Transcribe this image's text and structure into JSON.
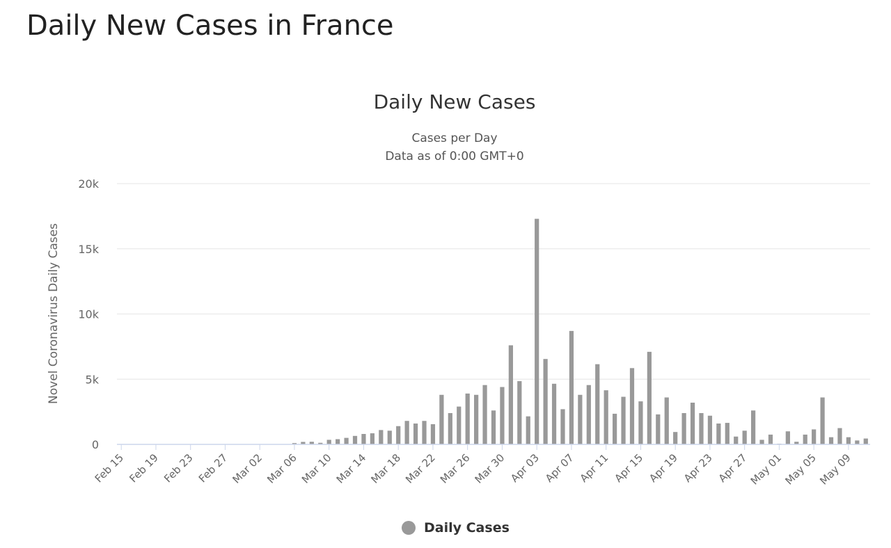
{
  "page": {
    "title": "Daily New Cases in France"
  },
  "chart_data": {
    "type": "bar",
    "title": "Daily New Cases",
    "subtitle_lines": [
      "Cases per Day",
      "Data as of 0:00 GMT+0"
    ],
    "ylabel": "Novel Coronavirus Daily Cases",
    "xlabel": "",
    "ylim": [
      0,
      20000
    ],
    "yticks": [
      0,
      5000,
      10000,
      15000,
      20000
    ],
    "ytick_labels": [
      "0",
      "5k",
      "10k",
      "15k",
      "20k"
    ],
    "grid": true,
    "legend_position": "bottom-center",
    "bar_color": "#999999",
    "categories": [
      "Feb 15",
      "Feb 16",
      "Feb 17",
      "Feb 18",
      "Feb 19",
      "Feb 20",
      "Feb 21",
      "Feb 22",
      "Feb 23",
      "Feb 24",
      "Feb 25",
      "Feb 26",
      "Feb 27",
      "Feb 28",
      "Feb 29",
      "Mar 01",
      "Mar 02",
      "Mar 03",
      "Mar 04",
      "Mar 05",
      "Mar 06",
      "Mar 07",
      "Mar 08",
      "Mar 09",
      "Mar 10",
      "Mar 11",
      "Mar 12",
      "Mar 13",
      "Mar 14",
      "Mar 15",
      "Mar 16",
      "Mar 17",
      "Mar 18",
      "Mar 19",
      "Mar 20",
      "Mar 21",
      "Mar 22",
      "Mar 23",
      "Mar 24",
      "Mar 25",
      "Mar 26",
      "Mar 27",
      "Mar 28",
      "Mar 29",
      "Mar 30",
      "Mar 31",
      "Apr 01",
      "Apr 02",
      "Apr 03",
      "Apr 04",
      "Apr 05",
      "Apr 06",
      "Apr 07",
      "Apr 08",
      "Apr 09",
      "Apr 10",
      "Apr 11",
      "Apr 12",
      "Apr 13",
      "Apr 14",
      "Apr 15",
      "Apr 16",
      "Apr 17",
      "Apr 18",
      "Apr 19",
      "Apr 20",
      "Apr 21",
      "Apr 22",
      "Apr 23",
      "Apr 24",
      "Apr 25",
      "Apr 26",
      "Apr 27",
      "Apr 28",
      "Apr 29",
      "Apr 30",
      "May 01",
      "May 02",
      "May 03",
      "May 04",
      "May 05",
      "May 06",
      "May 07",
      "May 08",
      "May 09",
      "May 10",
      "May 11"
    ],
    "xtick_labels": [
      "Feb 15",
      "Feb 19",
      "Feb 23",
      "Feb 27",
      "Mar 02",
      "Mar 06",
      "Mar 10",
      "Mar 14",
      "Mar 18",
      "Mar 22",
      "Mar 26",
      "Mar 30",
      "Apr 03",
      "Apr 07",
      "Apr 11",
      "Apr 15",
      "Apr 19",
      "Apr 23",
      "Apr 27",
      "May 01",
      "May 05",
      "May 09"
    ],
    "series": [
      {
        "name": "Daily Cases",
        "values": [
          0,
          0,
          0,
          0,
          0,
          0,
          0,
          0,
          0,
          0,
          0,
          0,
          0,
          0,
          0,
          0,
          0,
          0,
          0,
          0,
          100,
          190,
          200,
          120,
          350,
          400,
          500,
          650,
          800,
          850,
          1100,
          1050,
          1400,
          1800,
          1600,
          1800,
          1550,
          3800,
          2400,
          2900,
          3900,
          3800,
          4550,
          2600,
          4400,
          7600,
          4850,
          2150,
          17300,
          6550,
          4650,
          2700,
          8700,
          3800,
          4550,
          6150,
          4150,
          2350,
          3650,
          5850,
          3300,
          7100,
          2300,
          3600,
          950,
          2400,
          3200,
          2400,
          2200,
          1600,
          1650,
          600,
          1050,
          2600,
          350,
          750,
          50,
          1000,
          200,
          750,
          1150,
          3600,
          550,
          1250,
          550,
          300,
          450
        ]
      }
    ]
  }
}
